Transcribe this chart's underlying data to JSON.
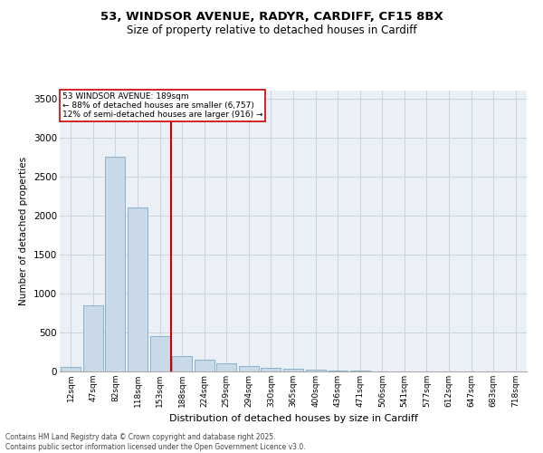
{
  "title_line1": "53, WINDSOR AVENUE, RADYR, CARDIFF, CF15 8BX",
  "title_line2": "Size of property relative to detached houses in Cardiff",
  "xlabel": "Distribution of detached houses by size in Cardiff",
  "ylabel": "Number of detached properties",
  "bar_labels": [
    "12sqm",
    "47sqm",
    "82sqm",
    "118sqm",
    "153sqm",
    "188sqm",
    "224sqm",
    "259sqm",
    "294sqm",
    "330sqm",
    "365sqm",
    "400sqm",
    "436sqm",
    "471sqm",
    "506sqm",
    "541sqm",
    "577sqm",
    "612sqm",
    "647sqm",
    "683sqm",
    "718sqm"
  ],
  "bar_values": [
    55,
    850,
    2750,
    2100,
    450,
    200,
    150,
    100,
    70,
    50,
    30,
    20,
    15,
    10,
    5,
    3,
    2,
    1,
    1,
    0,
    0
  ],
  "bar_color": "#c9d9e8",
  "bar_edge_color": "#7aaac8",
  "marker_index": 5,
  "marker_color": "#cc0000",
  "ylim": [
    0,
    3600
  ],
  "yticks": [
    0,
    500,
    1000,
    1500,
    2000,
    2500,
    3000,
    3500
  ],
  "annotation_title": "53 WINDSOR AVENUE: 189sqm",
  "annotation_line1": "← 88% of detached houses are smaller (6,757)",
  "annotation_line2": "12% of semi-detached houses are larger (916) →",
  "footer_line1": "Contains HM Land Registry data © Crown copyright and database right 2025.",
  "footer_line2": "Contains public sector information licensed under the Open Government Licence v3.0.",
  "bg_color": "#eaf0f6",
  "grid_color": "#c8d4de"
}
